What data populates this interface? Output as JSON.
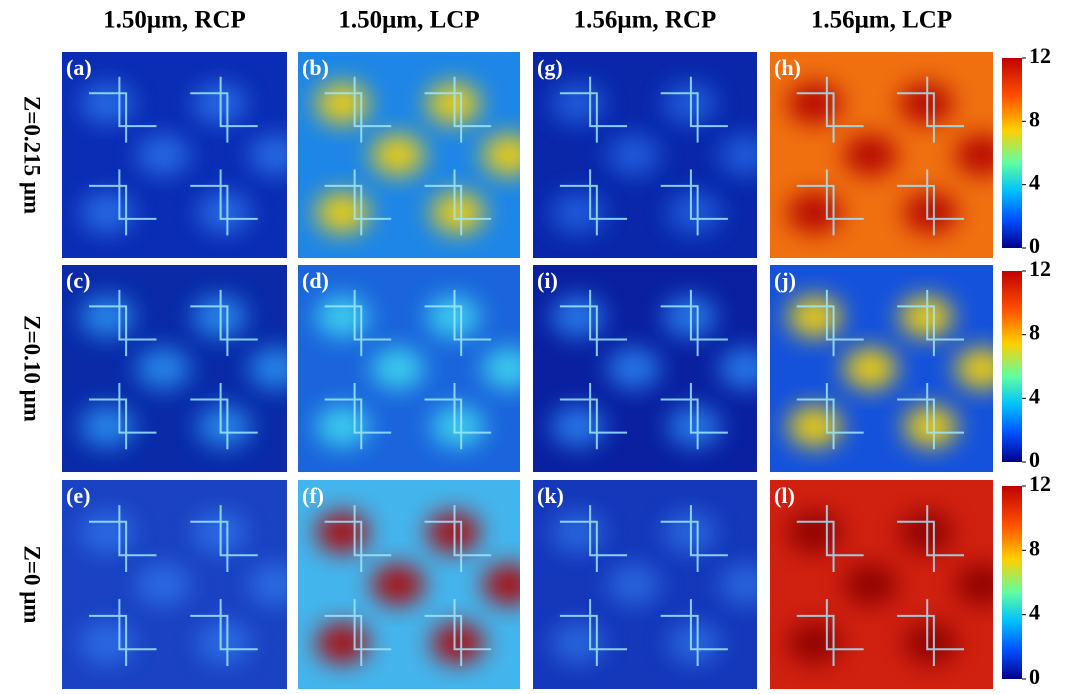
{
  "columns": [
    "1.50μm, RCP",
    "1.50μm, LCP",
    "1.56μm, RCP",
    "1.56μm, LCP"
  ],
  "rows": [
    {
      "label": "Z=0.215 μm",
      "panels": [
        "(a)",
        "(b)",
        "(g)",
        "(h)"
      ]
    },
    {
      "label": "Z=0.10 μm",
      "panels": [
        "(c)",
        "(d)",
        "(i)",
        "(j)"
      ]
    },
    {
      "label": "Z=0 μm",
      "panels": [
        "(e)",
        "(f)",
        "(k)",
        "(l)"
      ]
    }
  ],
  "colorbar": {
    "ticks": [
      "12",
      "8",
      "4",
      "0"
    ]
  }
}
